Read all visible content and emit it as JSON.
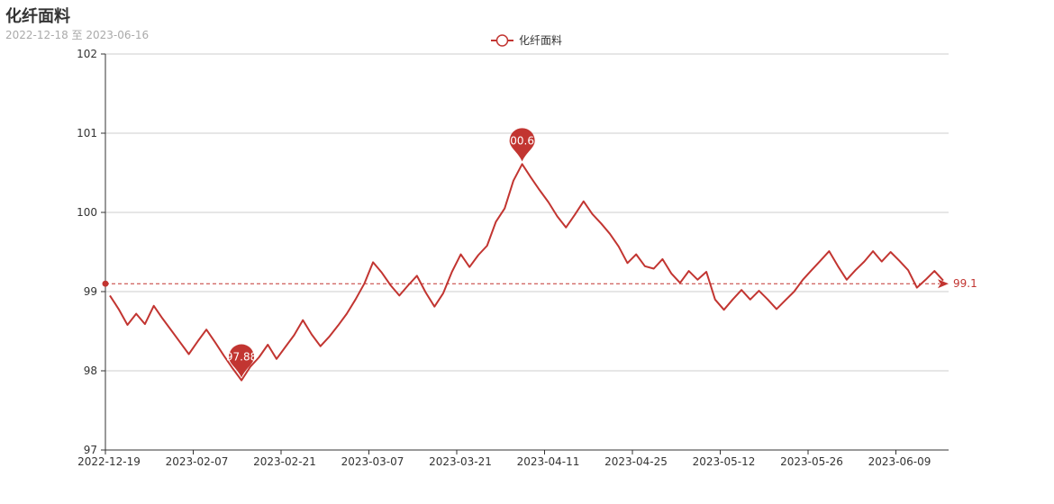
{
  "header": {
    "title": "化纤面料",
    "subtitle": "2022-12-18 至 2023-06-16"
  },
  "colors": {
    "series": "#c23531",
    "grid": "#cccccc",
    "axis": "#333333"
  },
  "chart_data": {
    "type": "line",
    "title": "化纤面料",
    "subtitle": "2022-12-18 至 2023-06-16",
    "legend": {
      "position": "top-center",
      "entries": [
        "化纤面料"
      ]
    },
    "ylim": [
      97,
      102
    ],
    "yticks": [
      97,
      98,
      99,
      100,
      101,
      102
    ],
    "xtick_labels": [
      "2022-12-19",
      "2023-02-07",
      "2023-02-21",
      "2023-03-07",
      "2023-03-21",
      "2023-04-11",
      "2023-04-25",
      "2023-05-12",
      "2023-05-26",
      "2023-06-09"
    ],
    "grid": true,
    "series": [
      {
        "name": "化纤面料",
        "values": [
          98.95,
          98.78,
          98.58,
          98.72,
          98.59,
          98.82,
          98.66,
          98.51,
          98.36,
          98.21,
          98.37,
          98.52,
          98.36,
          98.19,
          98.03,
          97.88,
          98.05,
          98.17,
          98.33,
          98.15,
          98.3,
          98.45,
          98.64,
          98.46,
          98.31,
          98.43,
          98.57,
          98.72,
          98.9,
          99.1,
          99.37,
          99.24,
          99.08,
          98.95,
          99.08,
          99.2,
          98.99,
          98.81,
          98.98,
          99.25,
          99.47,
          99.31,
          99.46,
          99.58,
          99.88,
          100.05,
          100.4,
          100.61,
          100.44,
          100.28,
          100.13,
          99.95,
          99.81,
          99.97,
          100.14,
          99.98,
          99.86,
          99.73,
          99.57,
          99.36,
          99.47,
          99.32,
          99.29,
          99.41,
          99.23,
          99.11,
          99.26,
          99.15,
          99.25,
          98.9,
          98.77,
          98.9,
          99.02,
          98.9,
          99.01,
          98.9,
          98.78,
          98.89,
          99.0,
          99.15,
          99.27,
          99.39,
          99.51,
          99.32,
          99.15,
          99.27,
          99.38,
          99.51,
          99.38,
          99.5,
          99.39,
          99.27,
          99.05,
          99.15,
          99.26,
          99.14
        ]
      }
    ],
    "markpoints": [
      {
        "type": "max",
        "label": "100.61"
      },
      {
        "type": "min",
        "label": "97.88"
      }
    ],
    "markline": {
      "type": "average",
      "value": 99.1,
      "label": "99.1"
    }
  }
}
